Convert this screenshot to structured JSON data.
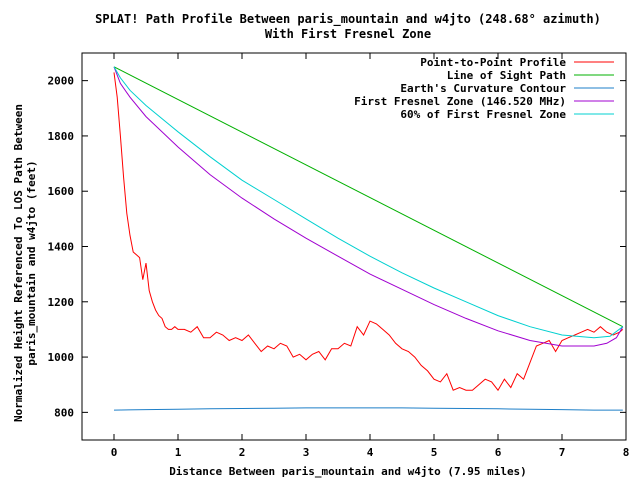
{
  "chart_data": {
    "type": "line",
    "title": "SPLAT! Path Profile Between paris_mountain and w4jto (248.68° azimuth)",
    "subtitle": "With First Fresnel Zone",
    "xlabel": "Distance Between paris_mountain and w4jto (7.95 miles)",
    "ylabel_line1": "Normalized Height Referenced To LOS Path Between",
    "ylabel_line2": "paris_mountain and w4jto (feet)",
    "xlim": [
      -0.5,
      8
    ],
    "ylim": [
      700,
      2100
    ],
    "x_ticks": [
      0,
      1,
      2,
      3,
      4,
      5,
      6,
      7,
      8
    ],
    "y_ticks": [
      800,
      1000,
      1200,
      1400,
      1600,
      1800,
      2000
    ],
    "grid": false,
    "legend_position": "top-right",
    "series": [
      {
        "name": "Point-to-Point Profile",
        "color": "#ff0000",
        "x": [
          0,
          0.05,
          0.1,
          0.15,
          0.2,
          0.25,
          0.3,
          0.35,
          0.4,
          0.45,
          0.5,
          0.55,
          0.6,
          0.65,
          0.7,
          0.75,
          0.8,
          0.85,
          0.9,
          0.95,
          1.0,
          1.1,
          1.2,
          1.3,
          1.4,
          1.5,
          1.6,
          1.7,
          1.8,
          1.9,
          2.0,
          2.1,
          2.2,
          2.3,
          2.4,
          2.5,
          2.6,
          2.7,
          2.8,
          2.9,
          3.0,
          3.1,
          3.2,
          3.3,
          3.4,
          3.5,
          3.6,
          3.7,
          3.8,
          3.9,
          4.0,
          4.1,
          4.2,
          4.3,
          4.4,
          4.5,
          4.6,
          4.7,
          4.8,
          4.9,
          5.0,
          5.1,
          5.2,
          5.3,
          5.4,
          5.5,
          5.6,
          5.7,
          5.8,
          5.9,
          6.0,
          6.1,
          6.2,
          6.3,
          6.4,
          6.5,
          6.6,
          6.7,
          6.8,
          6.9,
          7.0,
          7.1,
          7.2,
          7.3,
          7.4,
          7.5,
          7.6,
          7.7,
          7.8,
          7.9,
          7.95
        ],
        "values": [
          2030,
          1940,
          1800,
          1650,
          1520,
          1440,
          1380,
          1370,
          1360,
          1280,
          1340,
          1240,
          1200,
          1170,
          1150,
          1140,
          1110,
          1100,
          1100,
          1110,
          1100,
          1100,
          1090,
          1110,
          1070,
          1070,
          1090,
          1080,
          1060,
          1070,
          1060,
          1080,
          1050,
          1020,
          1040,
          1030,
          1050,
          1040,
          1000,
          1010,
          990,
          1010,
          1020,
          990,
          1030,
          1030,
          1050,
          1040,
          1110,
          1080,
          1130,
          1120,
          1100,
          1080,
          1050,
          1030,
          1020,
          1000,
          970,
          950,
          920,
          910,
          940,
          880,
          890,
          880,
          880,
          900,
          920,
          910,
          880,
          920,
          890,
          940,
          920,
          980,
          1040,
          1050,
          1060,
          1020,
          1060,
          1070,
          1080,
          1090,
          1100,
          1090,
          1110,
          1090,
          1080,
          1090,
          1100
        ]
      },
      {
        "name": "Line of Sight Path",
        "color": "#00b000",
        "x": [
          0,
          7.95
        ],
        "values": [
          2050,
          1110
        ]
      },
      {
        "name": "Earth's Curvature Contour",
        "color": "#1e7fc8",
        "x": [
          0,
          0.5,
          1.0,
          1.5,
          2.0,
          2.5,
          3.0,
          3.5,
          4.0,
          4.5,
          5.0,
          5.5,
          6.0,
          6.5,
          7.0,
          7.5,
          7.95
        ],
        "values": [
          808,
          810,
          811,
          813,
          814,
          815,
          816,
          816,
          816,
          816,
          815,
          814,
          813,
          811,
          810,
          808,
          808
        ]
      },
      {
        "name": "First Fresnel Zone (146.520 MHz)",
        "color": "#a000d0",
        "x": [
          0,
          0.1,
          0.25,
          0.5,
          1.0,
          1.5,
          2.0,
          2.5,
          3.0,
          3.5,
          4.0,
          4.5,
          5.0,
          5.5,
          6.0,
          6.5,
          7.0,
          7.25,
          7.5,
          7.7,
          7.85,
          7.95
        ],
        "values": [
          2050,
          1990,
          1940,
          1870,
          1760,
          1660,
          1575,
          1500,
          1430,
          1365,
          1300,
          1245,
          1190,
          1140,
          1095,
          1060,
          1040,
          1040,
          1040,
          1050,
          1070,
          1110
        ]
      },
      {
        "name": "60% of First Fresnel Zone",
        "color": "#00d0d0",
        "x": [
          0,
          0.1,
          0.25,
          0.5,
          1.0,
          1.5,
          2.0,
          2.5,
          3.0,
          3.5,
          4.0,
          4.5,
          5.0,
          5.5,
          6.0,
          6.5,
          7.0,
          7.5,
          7.75,
          7.95
        ],
        "values": [
          2050,
          2010,
          1965,
          1910,
          1815,
          1725,
          1640,
          1570,
          1500,
          1430,
          1365,
          1305,
          1250,
          1200,
          1150,
          1110,
          1080,
          1070,
          1075,
          1110
        ]
      }
    ]
  }
}
